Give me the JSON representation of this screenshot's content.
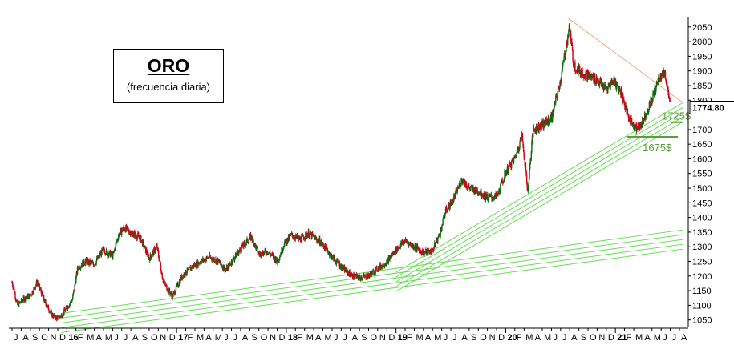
{
  "chart_data": {
    "type": "candlestick",
    "title": "ORO",
    "subtitle": "(frecuencia diaria)",
    "last_price_label": "1774.80",
    "ylim": [
      1030,
      2085
    ],
    "y_ticks": [
      1050,
      1100,
      1150,
      1200,
      1250,
      1300,
      1350,
      1400,
      1450,
      1500,
      1550,
      1600,
      1650,
      1700,
      1750,
      1800,
      1850,
      1900,
      1950,
      2000,
      2050
    ],
    "x_range": [
      2015.5,
      2021.62
    ],
    "x_ticks": [
      {
        "t": 2015.5,
        "label": "J",
        "bold": false
      },
      {
        "t": 2015.583,
        "label": "A",
        "bold": false
      },
      {
        "t": 2015.667,
        "label": "S",
        "bold": false
      },
      {
        "t": 2015.75,
        "label": "O",
        "bold": false
      },
      {
        "t": 2015.833,
        "label": "N",
        "bold": false
      },
      {
        "t": 2015.917,
        "label": "D",
        "bold": false
      },
      {
        "t": 2016.0,
        "label": "16",
        "bold": true
      },
      {
        "t": 2016.083,
        "label": "F",
        "bold": false
      },
      {
        "t": 2016.167,
        "label": "M",
        "bold": false
      },
      {
        "t": 2016.25,
        "label": "A",
        "bold": false
      },
      {
        "t": 2016.333,
        "label": "M",
        "bold": false
      },
      {
        "t": 2016.417,
        "label": "J",
        "bold": false
      },
      {
        "t": 2016.5,
        "label": "J",
        "bold": false
      },
      {
        "t": 2016.583,
        "label": "A",
        "bold": false
      },
      {
        "t": 2016.667,
        "label": "S",
        "bold": false
      },
      {
        "t": 2016.75,
        "label": "O",
        "bold": false
      },
      {
        "t": 2016.833,
        "label": "N",
        "bold": false
      },
      {
        "t": 2016.917,
        "label": "D",
        "bold": false
      },
      {
        "t": 2017.0,
        "label": "17",
        "bold": true
      },
      {
        "t": 2017.083,
        "label": "F",
        "bold": false
      },
      {
        "t": 2017.167,
        "label": "M",
        "bold": false
      },
      {
        "t": 2017.25,
        "label": "A",
        "bold": false
      },
      {
        "t": 2017.333,
        "label": "M",
        "bold": false
      },
      {
        "t": 2017.417,
        "label": "J",
        "bold": false
      },
      {
        "t": 2017.5,
        "label": "J",
        "bold": false
      },
      {
        "t": 2017.583,
        "label": "A",
        "bold": false
      },
      {
        "t": 2017.667,
        "label": "S",
        "bold": false
      },
      {
        "t": 2017.75,
        "label": "O",
        "bold": false
      },
      {
        "t": 2017.833,
        "label": "N",
        "bold": false
      },
      {
        "t": 2017.917,
        "label": "D",
        "bold": false
      },
      {
        "t": 2018.0,
        "label": "18",
        "bold": true
      },
      {
        "t": 2018.083,
        "label": "F",
        "bold": false
      },
      {
        "t": 2018.167,
        "label": "M",
        "bold": false
      },
      {
        "t": 2018.25,
        "label": "A",
        "bold": false
      },
      {
        "t": 2018.333,
        "label": "M",
        "bold": false
      },
      {
        "t": 2018.417,
        "label": "J",
        "bold": false
      },
      {
        "t": 2018.5,
        "label": "J",
        "bold": false
      },
      {
        "t": 2018.583,
        "label": "A",
        "bold": false
      },
      {
        "t": 2018.667,
        "label": "S",
        "bold": false
      },
      {
        "t": 2018.75,
        "label": "O",
        "bold": false
      },
      {
        "t": 2018.833,
        "label": "N",
        "bold": false
      },
      {
        "t": 2018.917,
        "label": "D",
        "bold": false
      },
      {
        "t": 2019.0,
        "label": "19",
        "bold": true
      },
      {
        "t": 2019.083,
        "label": "F",
        "bold": false
      },
      {
        "t": 2019.167,
        "label": "M",
        "bold": false
      },
      {
        "t": 2019.25,
        "label": "A",
        "bold": false
      },
      {
        "t": 2019.333,
        "label": "M",
        "bold": false
      },
      {
        "t": 2019.417,
        "label": "J",
        "bold": false
      },
      {
        "t": 2019.5,
        "label": "J",
        "bold": false
      },
      {
        "t": 2019.583,
        "label": "A",
        "bold": false
      },
      {
        "t": 2019.667,
        "label": "S",
        "bold": false
      },
      {
        "t": 2019.75,
        "label": "O",
        "bold": false
      },
      {
        "t": 2019.833,
        "label": "N",
        "bold": false
      },
      {
        "t": 2019.917,
        "label": "D",
        "bold": false
      },
      {
        "t": 2020.0,
        "label": "20",
        "bold": true
      },
      {
        "t": 2020.083,
        "label": "F",
        "bold": false
      },
      {
        "t": 2020.167,
        "label": "M",
        "bold": false
      },
      {
        "t": 2020.25,
        "label": "A",
        "bold": false
      },
      {
        "t": 2020.333,
        "label": "M",
        "bold": false
      },
      {
        "t": 2020.417,
        "label": "J",
        "bold": false
      },
      {
        "t": 2020.5,
        "label": "J",
        "bold": false
      },
      {
        "t": 2020.583,
        "label": "A",
        "bold": false
      },
      {
        "t": 2020.667,
        "label": "S",
        "bold": false
      },
      {
        "t": 2020.75,
        "label": "O",
        "bold": false
      },
      {
        "t": 2020.833,
        "label": "N",
        "bold": false
      },
      {
        "t": 2020.917,
        "label": "D",
        "bold": false
      },
      {
        "t": 2021.0,
        "label": "21",
        "bold": true
      },
      {
        "t": 2021.083,
        "label": "F",
        "bold": false
      },
      {
        "t": 2021.167,
        "label": "M",
        "bold": false
      },
      {
        "t": 2021.25,
        "label": "A",
        "bold": false
      },
      {
        "t": 2021.333,
        "label": "M",
        "bold": false
      },
      {
        "t": 2021.417,
        "label": "J",
        "bold": false
      },
      {
        "t": 2021.5,
        "label": "J",
        "bold": false
      },
      {
        "t": 2021.583,
        "label": "A",
        "bold": false
      }
    ],
    "price_path": [
      [
        2015.5,
        1180
      ],
      [
        2015.55,
        1100
      ],
      [
        2015.6,
        1120
      ],
      [
        2015.67,
        1135
      ],
      [
        2015.73,
        1180
      ],
      [
        2015.8,
        1110
      ],
      [
        2015.87,
        1065
      ],
      [
        2015.92,
        1055
      ],
      [
        2015.97,
        1075
      ],
      [
        2016.05,
        1120
      ],
      [
        2016.1,
        1230
      ],
      [
        2016.17,
        1250
      ],
      [
        2016.25,
        1240
      ],
      [
        2016.33,
        1290
      ],
      [
        2016.42,
        1270
      ],
      [
        2016.47,
        1340
      ],
      [
        2016.52,
        1365
      ],
      [
        2016.58,
        1350
      ],
      [
        2016.67,
        1330
      ],
      [
        2016.75,
        1260
      ],
      [
        2016.82,
        1300
      ],
      [
        2016.88,
        1180
      ],
      [
        2016.96,
        1130
      ],
      [
        2017.05,
        1200
      ],
      [
        2017.15,
        1235
      ],
      [
        2017.22,
        1250
      ],
      [
        2017.3,
        1265
      ],
      [
        2017.38,
        1250
      ],
      [
        2017.45,
        1220
      ],
      [
        2017.52,
        1260
      ],
      [
        2017.6,
        1300
      ],
      [
        2017.68,
        1335
      ],
      [
        2017.75,
        1275
      ],
      [
        2017.83,
        1285
      ],
      [
        2017.92,
        1250
      ],
      [
        2017.98,
        1310
      ],
      [
        2018.05,
        1340
      ],
      [
        2018.12,
        1325
      ],
      [
        2018.2,
        1345
      ],
      [
        2018.3,
        1320
      ],
      [
        2018.36,
        1295
      ],
      [
        2018.44,
        1255
      ],
      [
        2018.52,
        1225
      ],
      [
        2018.6,
        1200
      ],
      [
        2018.67,
        1195
      ],
      [
        2018.75,
        1200
      ],
      [
        2018.83,
        1225
      ],
      [
        2018.92,
        1250
      ],
      [
        2019.0,
        1290
      ],
      [
        2019.08,
        1320
      ],
      [
        2019.17,
        1300
      ],
      [
        2019.25,
        1280
      ],
      [
        2019.33,
        1285
      ],
      [
        2019.4,
        1345
      ],
      [
        2019.45,
        1420
      ],
      [
        2019.52,
        1460
      ],
      [
        2019.6,
        1530
      ],
      [
        2019.67,
        1500
      ],
      [
        2019.75,
        1490
      ],
      [
        2019.83,
        1470
      ],
      [
        2019.92,
        1470
      ],
      [
        2020.0,
        1555
      ],
      [
        2020.08,
        1600
      ],
      [
        2020.15,
        1680
      ],
      [
        2020.2,
        1490
      ],
      [
        2020.25,
        1700
      ],
      [
        2020.35,
        1720
      ],
      [
        2020.42,
        1740
      ],
      [
        2020.5,
        1870
      ],
      [
        2020.58,
        2050
      ],
      [
        2020.62,
        1920
      ],
      [
        2020.67,
        1900
      ],
      [
        2020.75,
        1885
      ],
      [
        2020.83,
        1870
      ],
      [
        2020.92,
        1835
      ],
      [
        2020.98,
        1870
      ],
      [
        2021.05,
        1830
      ],
      [
        2021.12,
        1740
      ],
      [
        2021.2,
        1700
      ],
      [
        2021.25,
        1730
      ],
      [
        2021.33,
        1800
      ],
      [
        2021.4,
        1880
      ],
      [
        2021.45,
        1895
      ],
      [
        2021.5,
        1780
      ]
    ],
    "support_channels": [
      {
        "from": [
          2015.95,
          1040
        ],
        "to": [
          2021.62,
          1325
        ],
        "lines": 5,
        "spacing": 6
      },
      {
        "from": [
          2019.0,
          1180
        ],
        "to": [
          2021.62,
          1760
        ],
        "lines": 5,
        "spacing": 6
      }
    ],
    "resistance_line": {
      "from": [
        2020.57,
        2080
      ],
      "to": [
        2021.62,
        1790
      ]
    },
    "horizontal_levels": [
      {
        "value": 1725,
        "label": "1725$",
        "from": 2021.5,
        "to": 2021.62
      },
      {
        "value": 1675,
        "label": "1675$",
        "from": 2021.1,
        "to": 2021.57
      }
    ],
    "colors": {
      "up": "#0a6b12",
      "down": "#d4001a",
      "support": "#66dd55",
      "level": "#5a9e3c",
      "resistance": "#f2a57a"
    }
  }
}
